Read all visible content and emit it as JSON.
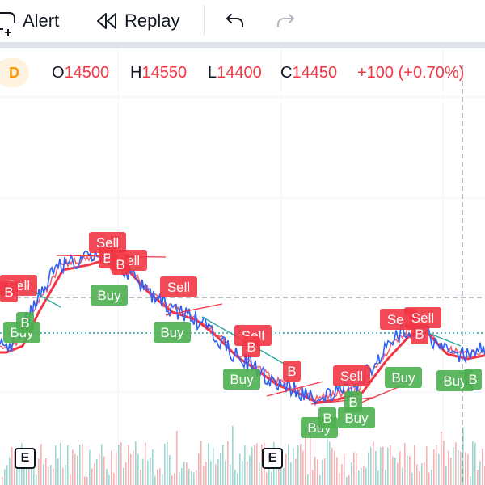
{
  "toolbar": {
    "alert_label": "Alert",
    "replay_label": "Replay"
  },
  "legend": {
    "interval_badge": "D",
    "open_key": "O",
    "open": "14500",
    "high_key": "H",
    "high": "14550",
    "low_key": "L",
    "low": "14400",
    "close_key": "C",
    "close": "14450",
    "change": "+100 (+0.70%)"
  },
  "colors": {
    "up": "#26a69a",
    "down": "#ef5350",
    "buy_label": "#4caf50",
    "sell_label": "#f23645",
    "ma_red": "#f23645",
    "ma_teal": "#26a69a",
    "price_blue": "#2962ff"
  },
  "events": [
    {
      "label": "E"
    },
    {
      "label": "E"
    }
  ],
  "signals": [
    {
      "type": "sell",
      "label": "Sell"
    },
    {
      "type": "buy",
      "label": "Buy"
    },
    {
      "type": "buy",
      "label": "B"
    },
    {
      "type": "sell",
      "label": "B"
    },
    {
      "type": "sell",
      "label": "Sell"
    },
    {
      "type": "sell",
      "label": "B"
    },
    {
      "type": "sell",
      "label": "Sell"
    },
    {
      "type": "buy",
      "label": "Buy"
    },
    {
      "type": "sell",
      "label": "Sell"
    },
    {
      "type": "sell",
      "label": "B"
    },
    {
      "type": "buy",
      "label": "Buy"
    },
    {
      "type": "sell",
      "label": "Sell"
    },
    {
      "type": "sell",
      "label": "B"
    },
    {
      "type": "buy",
      "label": "Buy"
    },
    {
      "type": "sell",
      "label": "B"
    },
    {
      "type": "buy",
      "label": "Buy"
    },
    {
      "type": "buy",
      "label": "B"
    },
    {
      "type": "sell",
      "label": "Sell"
    },
    {
      "type": "buy",
      "label": "B"
    },
    {
      "type": "buy",
      "label": "Buy"
    },
    {
      "type": "sell",
      "label": "Sell"
    },
    {
      "type": "sell",
      "label": "Sell"
    },
    {
      "type": "sell",
      "label": "B"
    },
    {
      "type": "buy",
      "label": "Buy"
    },
    {
      "type": "buy",
      "label": "Buy"
    },
    {
      "type": "buy",
      "label": "B"
    }
  ]
}
